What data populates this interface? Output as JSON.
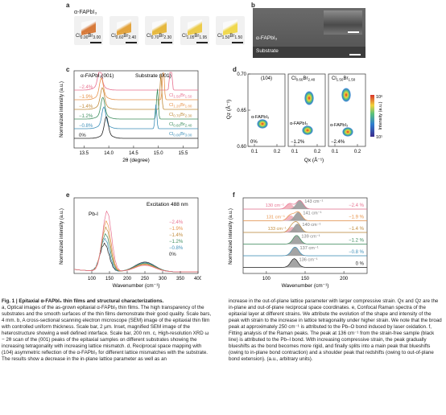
{
  "panel_a": {
    "label": "a",
    "top_label": "α-FAPbI₃",
    "samples": [
      {
        "name": "Cl",
        "sub1": "0.00",
        "mid": "Br",
        "sub2": "3.00"
      },
      {
        "name": "Cl",
        "sub1": "0.60",
        "mid": "Br",
        "sub2": "2.40"
      },
      {
        "name": "Cl",
        "sub1": "0.70",
        "mid": "Br",
        "sub2": "2.30"
      },
      {
        "name": "Cl",
        "sub1": "1.05",
        "mid": "Br",
        "sub2": "1.95"
      },
      {
        "name": "Cl",
        "sub1": "1.50",
        "mid": "Br",
        "sub2": "1.50"
      }
    ]
  },
  "panel_b": {
    "label": "b",
    "film_label": "α-FAPbI₃",
    "substrate_label": "Substrate"
  },
  "panel_c": {
    "label": "c",
    "peak_label": "α-FAPbI₃(001)",
    "substrate_label": "Substrate (001)",
    "ylabel": "Normalized intensity (a.u.)",
    "xlabel": "2θ (degree)",
    "xticks": [
      "13.5",
      "14.0",
      "14.5",
      "15.0",
      "15.5"
    ],
    "strains": [
      "−2.4%",
      "−1.9%",
      "−1.4%",
      "−1.2%",
      "−0.8%",
      "0%"
    ],
    "strain_colors": [
      "#e8708f",
      "#e8934a",
      "#c08a3a",
      "#3f8e5f",
      "#3d8fb8",
      "#222222"
    ],
    "substrate_labels": [
      {
        "cl": "1.50",
        "br": "1.50"
      },
      {
        "cl": "1.20",
        "br": "1.80"
      },
      {
        "cl": "0.70",
        "br": "2.30"
      },
      {
        "cl": "0.60",
        "br": "2.40"
      },
      {
        "cl": "0.00",
        "br": "3.00"
      }
    ]
  },
  "panel_d": {
    "label": "d",
    "subplots": [
      {
        "title": "(104)",
        "film": "α-FAPbI₃",
        "strain": "0%"
      },
      {
        "title_cl": "0.60",
        "title_br": "2.40",
        "film": "α-FAPbI₃",
        "strain": "−1.2%"
      },
      {
        "title_cl": "1.50",
        "title_br": "1.50",
        "film": "α-FAPbI₃",
        "strain": "−2.4%"
      }
    ],
    "ylabel": "Qz (Å⁻¹)",
    "xlabel": "Qx (Å⁻¹)",
    "yticks": [
      "0.70",
      "0.65",
      "0.60"
    ],
    "xticks": [
      "0.1",
      "0.2",
      "0.1",
      "0.2",
      "0.1",
      "0.2"
    ],
    "cbar_label": "Intensity (a.u.)",
    "cbar_top": "10⁶",
    "cbar_bottom": "10¹"
  },
  "panel_e": {
    "label": "e",
    "excitation": "Excitation 488 nm",
    "peak": "Pb-I",
    "ylabel": "Normalized intensity (a.u.)",
    "xlabel": "Wavenumber (cm⁻¹)",
    "xticks": [
      "100",
      "150",
      "200",
      "250",
      "300",
      "350",
      "400"
    ],
    "strains": [
      "−2.4%",
      "−1.9%",
      "−1.4%",
      "−1.2%",
      "−0.8%",
      "0%"
    ]
  },
  "panel_f": {
    "label": "f",
    "ylabel": "Normalized intensity (a.u.)",
    "xlabel": "Wavenumber (cm⁻¹)",
    "xticks": [
      "100",
      "150",
      "200"
    ],
    "rows": [
      {
        "strain": "−2.4 %",
        "main": "143 cm⁻¹",
        "shoulder": "130 cm⁻¹"
      },
      {
        "strain": "−1.9 %",
        "main": "141 cm⁻¹",
        "shoulder": "131 cm⁻¹"
      },
      {
        "strain": "−1.4 %",
        "main": "140 cm⁻¹",
        "shoulder": "133 cm⁻¹"
      },
      {
        "strain": "−1.2 %",
        "main": "139 cm⁻¹",
        "shoulder": ""
      },
      {
        "strain": "−0.8 %",
        "main": "137 cm⁻¹",
        "shoulder": ""
      },
      {
        "strain": "0 %",
        "main": "136 cm⁻¹",
        "shoulder": ""
      }
    ]
  },
  "caption": {
    "title": "Fig. 1 | Epitaxial α-FAPbI₃ thin films and structural characterizations.",
    "col1": "a, Optical images of the as-grown epitaxial α-FAPbI₃ thin films. The high transparency of the substrates and the smooth surfaces of the thin films demonstrate their good quality. Scale bars, 4 mm. b, A cross-sectional scanning electron microscope (SEM) image of the epitaxial thin film with controlled uniform thickness. Scale bar, 2 μm. Inset, magnified SEM image of the heterostructure showing a well defined interface. Scale bar, 200 nm. c, High-resolution XRD ω − 2θ scan of the (001) peaks of the epitaxial samples on different substrates showing the increasing tetragonality with increasing lattice mismatch. d, Reciprocal space mapping with (104) asymmetric reflection of the α-FAPbI₃ for different lattice mismatches with the substrate. The results show a decrease in the in-plane lattice parameter as well as an",
    "col2": "increase in the out-of-plane lattice parameter with larger compressive strain. Qx and Qz are the in-plane and out-of-plane reciprocal space coordinates. e, Confocal Raman spectra of the epitaxial layer at different strains. We attribute the evolution of the shape and intensity of the peak with strain to the increase in lattice tetragonality under higher strain. We note that the broad peak at approximately 250 cm⁻¹ is attributed to the Pb–O bond induced by laser oxidation. f, Fitting analysis of the Raman peaks. The peak at 136 cm⁻¹ from the strain-free sample (black line) is attributed to the Pb–I bond. With increasing compressive strain, the peak gradually blueshifts as the bond becomes more rigid, and finally splits into a main peak that blueshifts (owing to in-plane bond contraction) and a shoulder peak that redshifts (owing to out-of-plane bond extension). (a.u., arbitrary units)."
  }
}
